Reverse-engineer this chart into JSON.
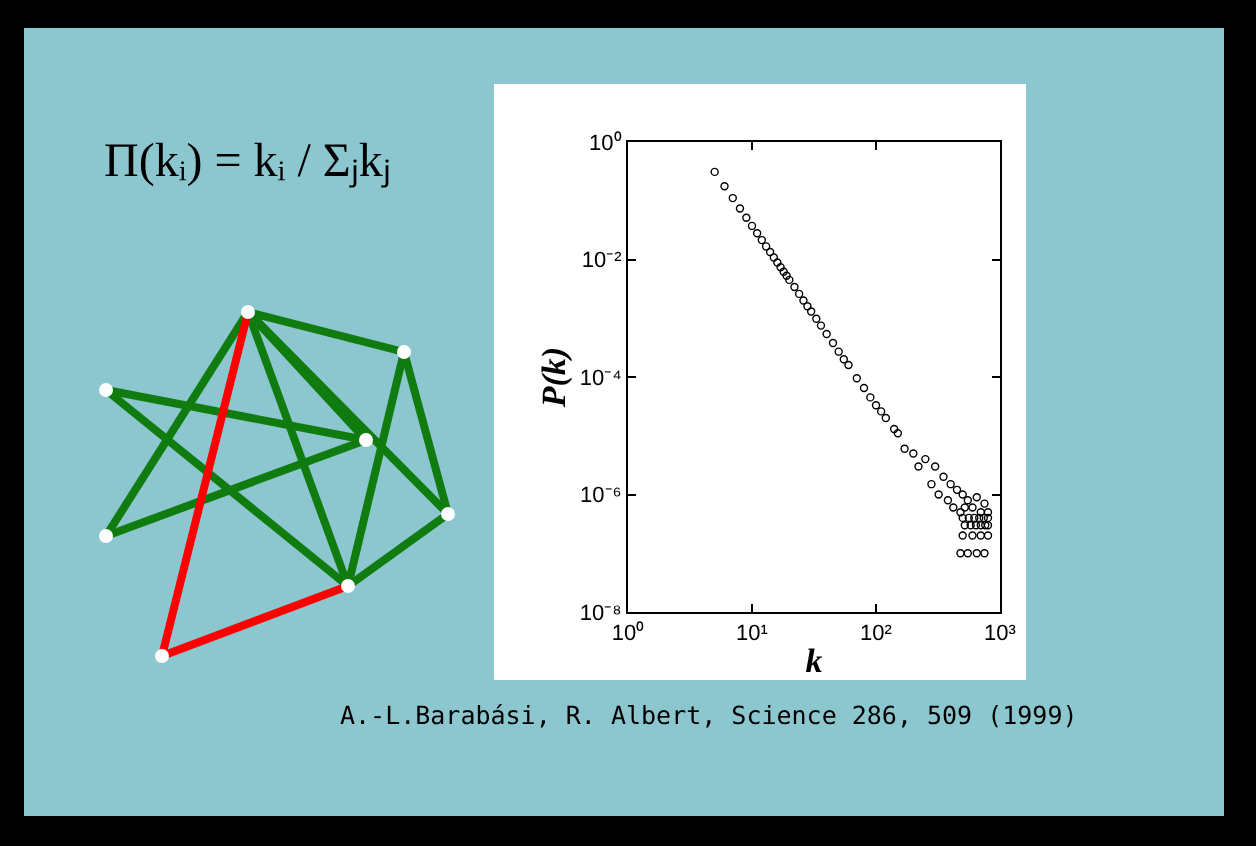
{
  "chart_data": {
    "type": "scatter",
    "xlabel": "k",
    "ylabel": "P(k)",
    "log": "xy",
    "marker": "circle",
    "grid": false,
    "annotations": [
      "Π(kᵢ) = kᵢ / Σⱼkⱼ",
      "A.-L.Barabási, R. Albert, Science 286, 509 (1999)"
    ],
    "xlim": [
      1,
      1000
    ],
    "ylim": [
      1e-08,
      1
    ],
    "xticks": [
      {
        "value": 1,
        "label": "10⁰"
      },
      {
        "value": 10,
        "label": "10¹"
      },
      {
        "value": 100,
        "label": "10²"
      },
      {
        "value": 1000,
        "label": "10³"
      }
    ],
    "yticks": [
      {
        "value": 1e-08,
        "label": "10⁻⁸"
      },
      {
        "value": 1e-06,
        "label": "10⁻⁶"
      },
      {
        "value": 0.0001,
        "label": "10⁻⁴"
      },
      {
        "value": 0.01,
        "label": "10⁻²"
      },
      {
        "value": 1,
        "label": "10⁰"
      }
    ],
    "series": [
      {
        "color": "#000000",
        "x": [
          5,
          6,
          7,
          8,
          9,
          10,
          11,
          12,
          13,
          14,
          15,
          16,
          17,
          18,
          19,
          20,
          22,
          24,
          26,
          28,
          30,
          33,
          36,
          40,
          45,
          50,
          55,
          60,
          70,
          80,
          90,
          100,
          110,
          120,
          140,
          150,
          170,
          200,
          220,
          250,
          280,
          300,
          320,
          350,
          380,
          400,
          420,
          450,
          480,
          500,
          520,
          550,
          600,
          650,
          700,
          750,
          800,
          500,
          560,
          620,
          680,
          740,
          800,
          520,
          580,
          640,
          700,
          760,
          800,
          500,
          600,
          700,
          800,
          480,
          550,
          650,
          750
        ],
        "values": [
          0.31,
          0.177,
          0.111,
          0.0738,
          0.0515,
          0.0373,
          0.028,
          0.0214,
          0.0167,
          0.0134,
          0.0108,
          0.0089,
          0.0074,
          0.0062,
          0.0053,
          0.0045,
          0.0034,
          0.0026,
          0.002,
          0.0016,
          0.0013,
          0.00098,
          0.00075,
          0.00054,
          0.00038,
          0.00027,
          0.0002,
          0.00016,
          9.5e-05,
          6.5e-05,
          4.5e-05,
          3.3e-05,
          2.6e-05,
          2e-05,
          1.3e-05,
          1.1e-05,
          6e-06,
          5e-06,
          3e-06,
          4e-06,
          1.5e-06,
          3e-06,
          1e-06,
          2e-06,
          8e-07,
          1.5e-06,
          6e-07,
          1.2e-06,
          5e-07,
          1e-06,
          6e-07,
          8e-07,
          6e-07,
          9e-07,
          5e-07,
          7e-07,
          5e-07,
          4e-07,
          4e-07,
          4e-07,
          4e-07,
          4e-07,
          4e-07,
          3e-07,
          3e-07,
          3e-07,
          3e-07,
          3e-07,
          3e-07,
          2e-07,
          2e-07,
          2e-07,
          2e-07,
          1e-07,
          1e-07,
          1e-07,
          1e-07
        ]
      }
    ]
  }
}
